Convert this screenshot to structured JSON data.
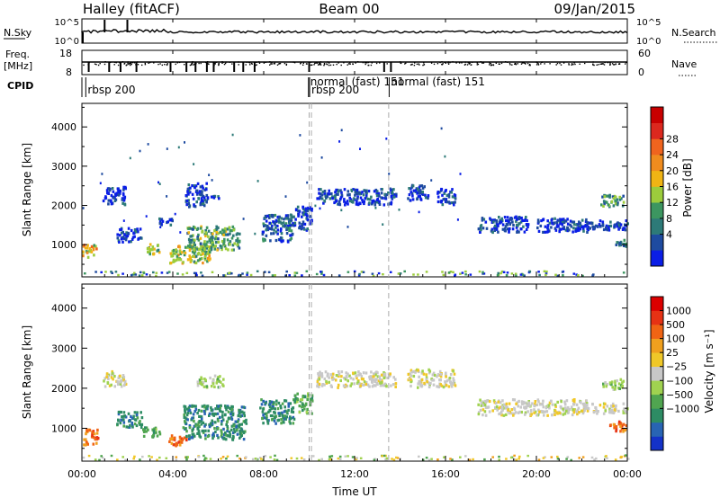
{
  "header": {
    "title": "Halley (fitACF)",
    "beam": "Beam 00",
    "date": "09/Jan/2015"
  },
  "top_panels": {
    "nsky": {
      "label": "N.Sky",
      "right_label": "N.Search",
      "left_ticks": [
        "10^5",
        "10^0"
      ],
      "right_ticks": [
        "10^5",
        "10^0"
      ]
    },
    "freq": {
      "label_line1": "Freq.",
      "label_line2": "[MHz]",
      "right_label": "Nave",
      "left_ticks": [
        "18",
        "8"
      ],
      "right_ticks": [
        "60",
        "0"
      ]
    },
    "cpid": {
      "label": "CPID",
      "entries": [
        {
          "text": "rbsp 200",
          "time": 0.25
        },
        {
          "text": "normal (fast) 151",
          "time": 10.05
        },
        {
          "text": "rbsp 200",
          "time": 10.1
        },
        {
          "text": "normal (fast) 151",
          "time": 13.6
        }
      ],
      "mode_changes_hours": [
        10.0,
        10.1,
        13.5
      ]
    }
  },
  "xaxis": {
    "label": "Time UT",
    "range": [
      0,
      24
    ],
    "ticks": [
      0,
      4,
      8,
      12,
      16,
      20,
      24
    ],
    "tick_labels": [
      "00:00",
      "04:00",
      "08:00",
      "12:00",
      "16:00",
      "20:00",
      "00:00"
    ]
  },
  "chart_data": [
    {
      "type": "heatmap",
      "ylabel": "Slant Range [km]",
      "ylim": [
        180,
        4600
      ],
      "yticks": [
        1000,
        2000,
        3000,
        4000
      ],
      "colorbar": {
        "label": "Power [dB]",
        "ticks": [
          "4",
          "8",
          "12",
          "16",
          "20",
          "24",
          "28"
        ],
        "colors": [
          "#0a1ee6",
          "#1e4ba0",
          "#2d7a78",
          "#3c9660",
          "#9ccc3c",
          "#f0b414",
          "#f08c1e",
          "#f0641e",
          "#dc281e",
          "#c80000"
        ]
      },
      "clusters": [
        {
          "t0": 0.0,
          "t1": 0.6,
          "r0": 700,
          "r1": 1050,
          "lvl": 0.55
        },
        {
          "t0": 0.9,
          "t1": 1.9,
          "r0": 2050,
          "r1": 2500,
          "lvl": 0.1
        },
        {
          "t0": 1.5,
          "t1": 2.6,
          "r0": 1100,
          "r1": 1450,
          "lvl": 0.1
        },
        {
          "t0": 2.8,
          "t1": 3.4,
          "r0": 780,
          "r1": 1050,
          "lvl": 0.4
        },
        {
          "t0": 3.3,
          "t1": 4.0,
          "r0": 1500,
          "r1": 1700,
          "lvl": 0.12
        },
        {
          "t0": 3.8,
          "t1": 5.6,
          "r0": 560,
          "r1": 1000,
          "lvl": 0.45
        },
        {
          "t0": 4.6,
          "t1": 6.9,
          "r0": 900,
          "r1": 1500,
          "lvl": 0.35
        },
        {
          "t0": 5.6,
          "t1": 6.0,
          "r0": 2200,
          "r1": 2350,
          "lvl": 0.15
        },
        {
          "t0": 4.5,
          "t1": 5.5,
          "r0": 2000,
          "r1": 2600,
          "lvl": 0.1
        },
        {
          "t0": 7.9,
          "t1": 9.3,
          "r0": 1100,
          "r1": 1800,
          "lvl": 0.15
        },
        {
          "t0": 9.3,
          "t1": 10.1,
          "r0": 1400,
          "r1": 2000,
          "lvl": 0.12
        },
        {
          "t0": 10.3,
          "t1": 13.8,
          "r0": 2050,
          "r1": 2450,
          "lvl": 0.12
        },
        {
          "t0": 14.3,
          "t1": 15.2,
          "r0": 2150,
          "r1": 2550,
          "lvl": 0.1
        },
        {
          "t0": 15.6,
          "t1": 16.4,
          "r0": 2050,
          "r1": 2450,
          "lvl": 0.1
        },
        {
          "t0": 17.4,
          "t1": 19.6,
          "r0": 1350,
          "r1": 1750,
          "lvl": 0.08
        },
        {
          "t0": 20.0,
          "t1": 22.2,
          "r0": 1350,
          "r1": 1700,
          "lvl": 0.08
        },
        {
          "t0": 21.8,
          "t1": 24.0,
          "r0": 1400,
          "r1": 1650,
          "lvl": 0.08
        },
        {
          "t0": 22.8,
          "t1": 23.8,
          "r0": 2000,
          "r1": 2300,
          "lvl": 0.3
        },
        {
          "t0": 23.4,
          "t1": 24.0,
          "r0": 950,
          "r1": 1150,
          "lvl": 0.25
        }
      ]
    },
    {
      "type": "heatmap",
      "ylabel": "Slant Range [km]",
      "ylim": [
        180,
        4600
      ],
      "yticks": [
        1000,
        2000,
        3000,
        4000
      ],
      "colorbar": {
        "label": "Velocity [m s⁻¹]",
        "ticks": [
          "1000",
          "500",
          "100",
          "25",
          "−25",
          "−100",
          "−500",
          "−1000"
        ],
        "colors": [
          "#1432c8",
          "#2864b4",
          "#2d8c64",
          "#50a550",
          "#a0d250",
          "#c8c8c8",
          "#f0c828",
          "#f0a01e",
          "#f06414",
          "#e63214",
          "#dc0000"
        ]
      },
      "clusters": [
        {
          "t0": 0.0,
          "t1": 0.7,
          "r0": 600,
          "r1": 1000,
          "c": 8
        },
        {
          "t0": 0.9,
          "t1": 1.9,
          "r0": 2050,
          "r1": 2450,
          "c": 5
        },
        {
          "t0": 1.5,
          "t1": 2.6,
          "r0": 1050,
          "r1": 1450,
          "c": 2
        },
        {
          "t0": 2.6,
          "t1": 3.4,
          "r0": 800,
          "r1": 1050,
          "c": 3
        },
        {
          "t0": 3.8,
          "t1": 4.6,
          "r0": 550,
          "r1": 850,
          "c": 8
        },
        {
          "t0": 4.4,
          "t1": 7.2,
          "r0": 750,
          "r1": 1600,
          "c": 2
        },
        {
          "t0": 5.0,
          "t1": 6.2,
          "r0": 2050,
          "r1": 2350,
          "c": 4
        },
        {
          "t0": 7.8,
          "t1": 9.3,
          "r0": 1150,
          "r1": 1750,
          "c": 2
        },
        {
          "t0": 9.3,
          "t1": 10.1,
          "r0": 1400,
          "r1": 1900,
          "c": 3
        },
        {
          "t0": 10.3,
          "t1": 13.8,
          "r0": 2050,
          "r1": 2450,
          "c": 5
        },
        {
          "t0": 14.3,
          "t1": 16.4,
          "r0": 2050,
          "r1": 2500,
          "c": 5
        },
        {
          "t0": 17.4,
          "t1": 22.2,
          "r0": 1350,
          "r1": 1750,
          "c": 5
        },
        {
          "t0": 21.8,
          "t1": 24.0,
          "r0": 1400,
          "r1": 1650,
          "c": 5
        },
        {
          "t0": 22.8,
          "t1": 23.8,
          "r0": 2000,
          "r1": 2250,
          "c": 4
        },
        {
          "t0": 23.2,
          "t1": 24.0,
          "r0": 950,
          "r1": 1200,
          "c": 8
        }
      ]
    }
  ]
}
